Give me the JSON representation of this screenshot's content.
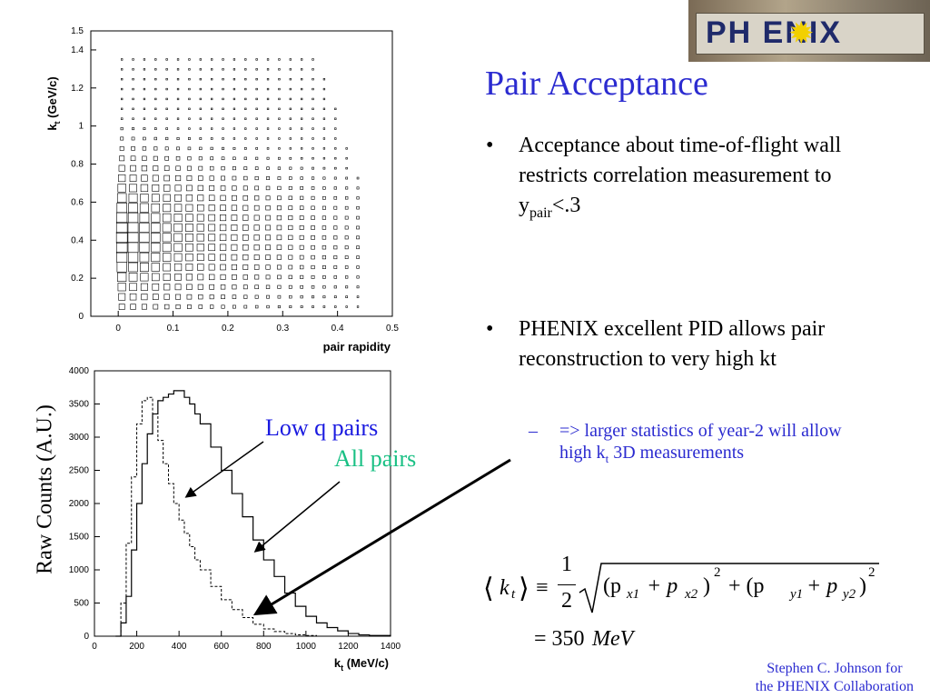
{
  "slide": {
    "title": "Pair Acceptance",
    "bullets": [
      {
        "text": "Acceptance about time-of-flight wall restricts correlation measurement to y",
        "sub": "pair",
        "tail": "<.3"
      },
      {
        "text": "PHENIX excellent PID allows pair reconstruction to very high kt"
      }
    ],
    "subbullet": {
      "pre": "=> larger statistics of year-2 will allow high k",
      "sub": "t",
      "post": " 3D measurements"
    },
    "labels": {
      "low_q": "Low q pairs",
      "all_pairs": "All pairs",
      "raw_counts": "Raw Counts (A.U.)"
    },
    "credit": [
      "Stephen C. Johnson for",
      "the PHENIX Collaboration"
    ],
    "logo_text": "PH  ENIX",
    "equation": {
      "lhs": "k",
      "lhs_sub": "t",
      "equiv": "≡",
      "frac_num": "1",
      "frac_den": "2",
      "rhs": "(p",
      "px1": "x1",
      "plus": "+ p",
      "px2": "x2",
      "sq": "2",
      "mid": "+ (p",
      "py1": "y1",
      "py2": "y2",
      "result": "= 350",
      "result_unit": "MeV"
    },
    "colors": {
      "title": "#2b2bd0",
      "low_q": "#1a1ae0",
      "all_pairs": "#19c084"
    }
  },
  "chart_data": [
    {
      "type": "scatter",
      "xlabel": "pair rapidity",
      "ylabel": "k_t (GeV/c)",
      "xlim": [
        -0.05,
        0.5
      ],
      "ylim": [
        0,
        1.5
      ],
      "x_ticks": [
        "0",
        "0.1",
        "0.2",
        "0.3",
        "0.4",
        "0.5"
      ],
      "y_ticks": [
        "0",
        "0.2",
        "0.4",
        "0.6",
        "0.8",
        "1",
        "1.2",
        "1.4",
        "1.5"
      ],
      "note": "box-size density of pair acceptance; largest at low rapidity and kt 0.3-0.5 GeV/c"
    },
    {
      "type": "line",
      "xlabel": "k_t (MeV/c)",
      "ylabel": "Raw Counts (A.U.)",
      "xlim": [
        0,
        1400
      ],
      "ylim": [
        0,
        4000
      ],
      "x_ticks": [
        "0",
        "200",
        "400",
        "600",
        "800",
        "1000",
        "1200",
        "1400"
      ],
      "y_ticks": [
        "0",
        "500",
        "1000",
        "1500",
        "2000",
        "2500",
        "3000",
        "3500",
        "4000"
      ],
      "x": [
        100,
        125,
        150,
        175,
        200,
        225,
        250,
        275,
        300,
        325,
        350,
        375,
        400,
        425,
        450,
        475,
        500,
        550,
        600,
        650,
        700,
        750,
        800,
        850,
        900,
        950,
        1000,
        1050,
        1100,
        1150,
        1200,
        1250,
        1300,
        1400
      ],
      "series": [
        {
          "name": "All pairs",
          "style": "solid",
          "values": [
            0,
            200,
            600,
            1300,
            2000,
            2600,
            3050,
            3350,
            3550,
            3600,
            3650,
            3700,
            3700,
            3600,
            3500,
            3350,
            3200,
            2850,
            2500,
            2150,
            1800,
            1450,
            1150,
            900,
            650,
            450,
            300,
            200,
            130,
            80,
            40,
            20,
            10,
            0
          ]
        },
        {
          "name": "Low q pairs",
          "style": "dashed",
          "values": [
            0,
            500,
            1400,
            2400,
            3200,
            3550,
            3600,
            3350,
            2950,
            2600,
            2300,
            2000,
            1750,
            1550,
            1350,
            1150,
            1000,
            750,
            550,
            400,
            280,
            180,
            110,
            70,
            40,
            20,
            10,
            0,
            0,
            0,
            0,
            0,
            0,
            0
          ]
        }
      ]
    }
  ]
}
